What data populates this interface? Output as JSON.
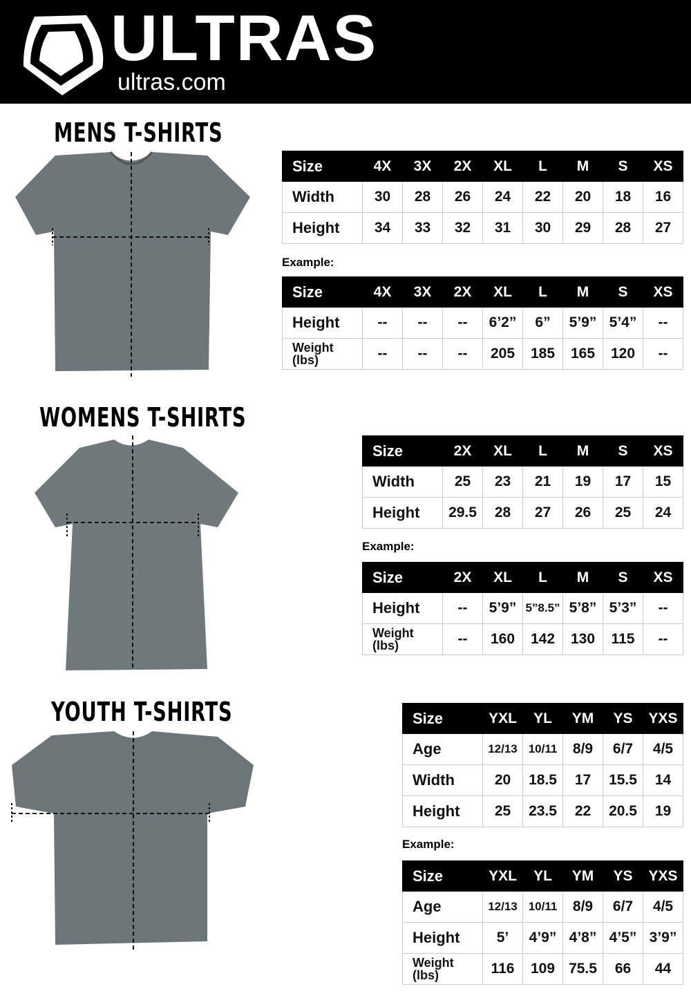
{
  "brand": {
    "name": "ULTRAS",
    "url": "ultras.com",
    "header_color": "#000000"
  },
  "example_label": "Example:",
  "sections": [
    {
      "title": "MENS T-SHIRTS",
      "size_table": {
        "header": [
          "Size",
          "4X",
          "3X",
          "2X",
          "XL",
          "L",
          "M",
          "S",
          "XS"
        ],
        "rows": [
          [
            "Width",
            "30",
            "28",
            "26",
            "24",
            "22",
            "20",
            "18",
            "16"
          ],
          [
            "Height",
            "34",
            "33",
            "32",
            "31",
            "30",
            "29",
            "28",
            "27"
          ]
        ]
      },
      "example_table": {
        "header": [
          "Size",
          "4X",
          "3X",
          "2X",
          "XL",
          "L",
          "M",
          "S",
          "XS"
        ],
        "rows": [
          [
            "Height",
            "--",
            "--",
            "--",
            "6’2”",
            "6”",
            "5’9”",
            "5’4”",
            "--"
          ],
          [
            "Weight (lbs)",
            "--",
            "--",
            "--",
            "205",
            "185",
            "165",
            "120",
            "--"
          ]
        ]
      }
    },
    {
      "title": "WOMENS T-SHIRTS",
      "size_table": {
        "header": [
          "Size",
          "2X",
          "XL",
          "L",
          "M",
          "S",
          "XS"
        ],
        "rows": [
          [
            "Width",
            "25",
            "23",
            "21",
            "19",
            "17",
            "15"
          ],
          [
            "Height",
            "29.5",
            "28",
            "27",
            "26",
            "25",
            "24"
          ]
        ]
      },
      "example_table": {
        "header": [
          "Size",
          "2X",
          "XL",
          "L",
          "M",
          "S",
          "XS"
        ],
        "rows": [
          [
            "Height",
            "--",
            "5’9”",
            "5”8.5”",
            "5’8”",
            "5’3”",
            "--"
          ],
          [
            "Weight (lbs)",
            "--",
            "160",
            "142",
            "130",
            "115",
            "--"
          ]
        ]
      }
    },
    {
      "title": "YOUTH T-SHIRTS",
      "size_table": {
        "header": [
          "Size",
          "YXL",
          "YL",
          "YM",
          "YS",
          "YXS"
        ],
        "rows": [
          [
            "Age",
            "12/13",
            "10/11",
            "8/9",
            "6/7",
            "4/5"
          ],
          [
            "Width",
            "20",
            "18.5",
            "17",
            "15.5",
            "14"
          ],
          [
            "Height",
            "25",
            "23.5",
            "22",
            "20.5",
            "19"
          ]
        ]
      },
      "example_table": {
        "header": [
          "Size",
          "YXL",
          "YL",
          "YM",
          "YS",
          "YXS"
        ],
        "rows": [
          [
            "Age",
            "12/13",
            "10/11",
            "8/9",
            "6/7",
            "4/5"
          ],
          [
            "Height",
            "5’",
            "4’9”",
            "4’8”",
            "4’5”",
            "3’9”"
          ],
          [
            "Weight (lbs)",
            "116",
            "109",
            "75.5",
            "66",
            "44"
          ]
        ]
      }
    }
  ]
}
